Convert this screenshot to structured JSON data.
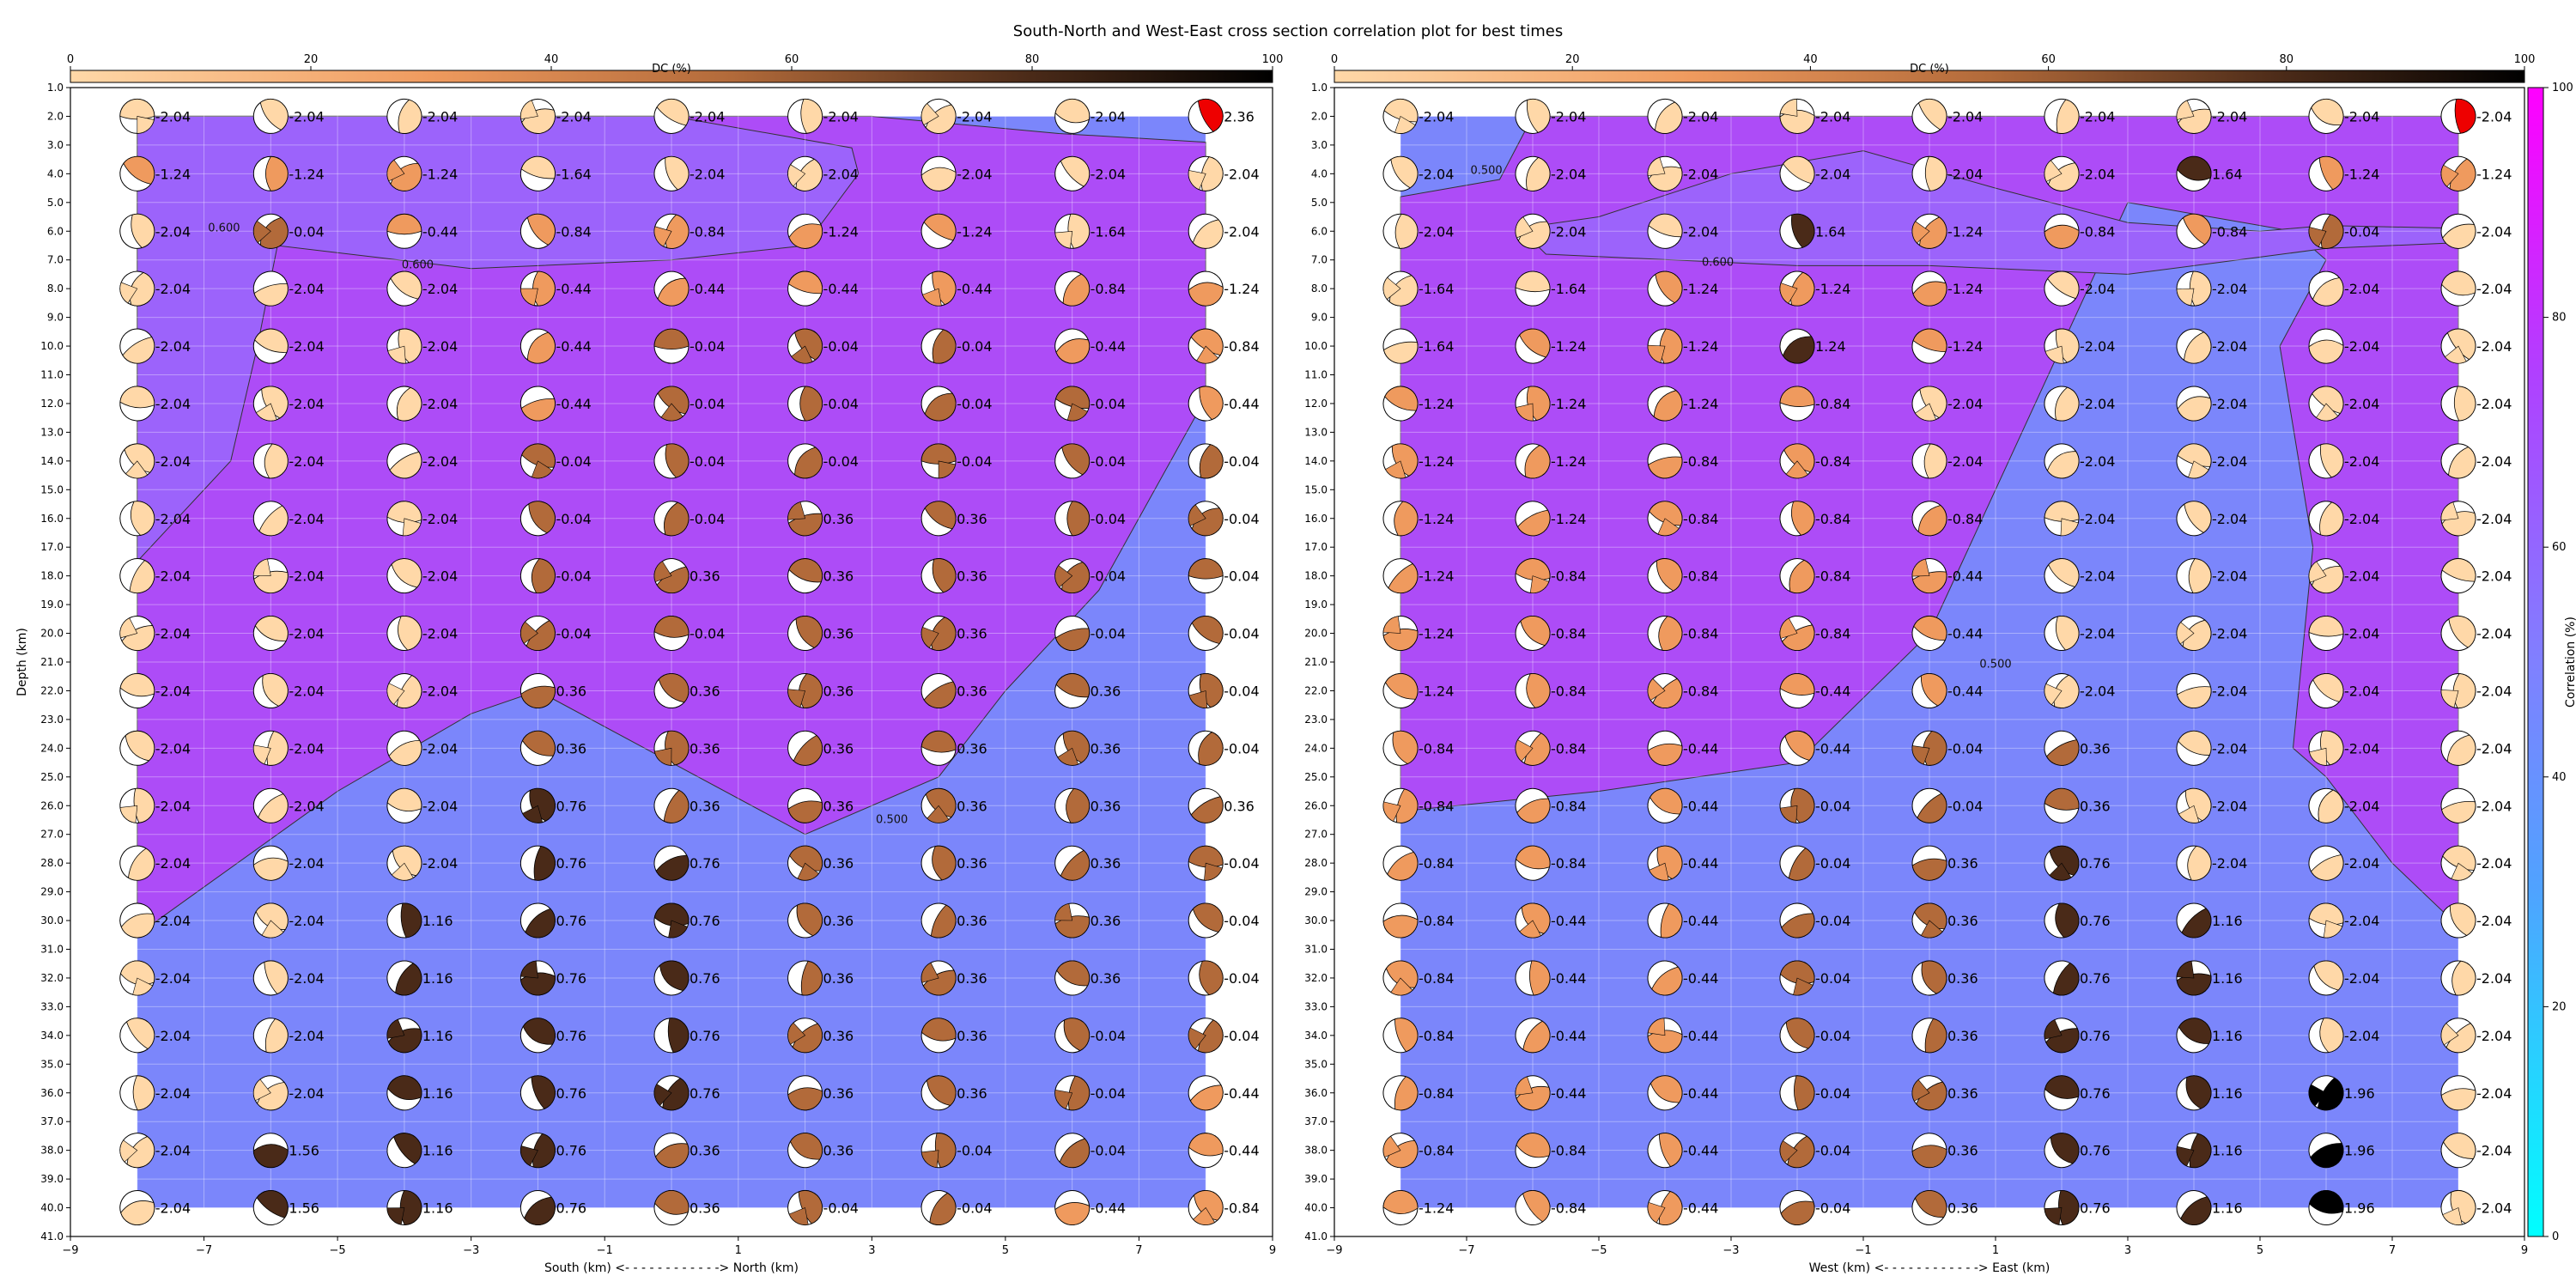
{
  "figure": {
    "title": "South-North and West-East cross section correlation plot for best times"
  },
  "dc_colorbar": {
    "label": "DC (%)",
    "ticks": [
      0,
      20,
      40,
      60,
      80,
      100
    ],
    "colors": [
      "#ffd8a8",
      "#ef9a5e",
      "#b26a3a",
      "#4a2a18",
      "#000000"
    ]
  },
  "correlation_colorbar": {
    "label": "Correlation (%)",
    "ticks": [
      0,
      20,
      40,
      60,
      80,
      100
    ],
    "colors": [
      "#00ffff",
      "#4fa3ff",
      "#8080ff",
      "#b040ff",
      "#ff00ff"
    ]
  },
  "depth_ticks": [
    "1.0",
    "2.0",
    "3.0",
    "4.0",
    "5.0",
    "6.0",
    "7.0",
    "8.0",
    "9.0",
    "10.0",
    "11.0",
    "12.0",
    "13.0",
    "14.0",
    "15.0",
    "16.0",
    "17.0",
    "18.0",
    "19.0",
    "20.0",
    "21.0",
    "22.0",
    "23.0",
    "24.0",
    "25.0",
    "26.0",
    "27.0",
    "28.0",
    "29.0",
    "30.0",
    "31.0",
    "32.0",
    "33.0",
    "34.0",
    "35.0",
    "36.0",
    "37.0",
    "38.0",
    "39.0",
    "40.0",
    "41.0"
  ],
  "chart_data": [
    {
      "type": "heatmap",
      "xlabel": "South (km) <- - - - - - - - - - - -> North (km)",
      "ylabel": "Depth (km)",
      "xlim": [
        -9,
        9
      ],
      "ylim": [
        41,
        1
      ],
      "x_ticks": [
        "−9",
        "−7",
        "−5",
        "−3",
        "−1",
        "1",
        "3",
        "5",
        "7",
        "9"
      ],
      "x": [
        -8,
        -6,
        -4,
        -2,
        0,
        2,
        4,
        6,
        8
      ],
      "depths": [
        2,
        4,
        6,
        8,
        10,
        12,
        14,
        16,
        18,
        20,
        22,
        24,
        26,
        28,
        30,
        32,
        34,
        36,
        38,
        40
      ],
      "contours": [
        {
          "label": "0.600",
          "points": [
            [
              -8,
              2
            ],
            [
              -8,
              17.5
            ],
            [
              -6.6,
              14
            ],
            [
              -6.2,
              10
            ],
            [
              -5.9,
              6.5
            ],
            [
              -3,
              7.3
            ],
            [
              0,
              7
            ],
            [
              2,
              6.5
            ],
            [
              2.8,
              4
            ],
            [
              2.7,
              3.1
            ],
            [
              0,
              2
            ]
          ]
        },
        {
          "label": "0.500",
          "points": [
            [
              -8,
              30.5
            ],
            [
              -5,
              25.5
            ],
            [
              -3,
              22.8
            ],
            [
              -2,
              22
            ],
            [
              0,
              24.5
            ],
            [
              2,
              27
            ],
            [
              4,
              25
            ],
            [
              5,
              22
            ],
            [
              6.4,
              18.5
            ],
            [
              8,
              11.8
            ],
            [
              8,
              2.9
            ],
            [
              5.8,
              2.6
            ],
            [
              3,
              2
            ],
            [
              -8,
              2
            ]
          ]
        }
      ],
      "contour_labels": [
        {
          "text": "0.600",
          "x": -6.7,
          "y": 6.0
        },
        {
          "text": "0.600",
          "x": -3.8,
          "y": 7.3
        },
        {
          "text": "0.500",
          "x": 3.3,
          "y": 26.6
        }
      ],
      "beachball_labels": [
        [
          "-2.04",
          "-2.04",
          "-2.04",
          "-2.04",
          "-2.04",
          "-2.04",
          "-2.04",
          "-2.04",
          "2.36"
        ],
        [
          "-1.24",
          "-1.24",
          "-1.24",
          "-1.64",
          "-2.04",
          "-2.04",
          "-2.04",
          "-2.04",
          "-2.04"
        ],
        [
          "-2.04",
          "-0.04",
          "-0.44",
          "-0.84",
          "-0.84",
          "-1.24",
          "-1.24",
          "-1.64",
          "-2.04"
        ],
        [
          "-2.04",
          "-2.04",
          "-2.04",
          "-0.44",
          "-0.44",
          "-0.44",
          "-0.44",
          "-0.84",
          "-1.24"
        ],
        [
          "-2.04",
          "-2.04",
          "-2.04",
          "-0.44",
          "-0.04",
          "-0.04",
          "-0.04",
          "-0.44",
          "-0.84"
        ],
        [
          "-2.04",
          "-2.04",
          "-2.04",
          "-0.44",
          "-0.04",
          "-0.04",
          "-0.04",
          "-0.04",
          "-0.44"
        ],
        [
          "-2.04",
          "-2.04",
          "-2.04",
          "-0.04",
          "-0.04",
          "-0.04",
          "-0.04",
          "-0.04",
          "-0.04"
        ],
        [
          "-2.04",
          "-2.04",
          "-2.04",
          "-0.04",
          "-0.04",
          "0.36",
          "0.36",
          "-0.04",
          "-0.04"
        ],
        [
          "-2.04",
          "-2.04",
          "-2.04",
          "-0.04",
          "0.36",
          "0.36",
          "0.36",
          "-0.04",
          "-0.04"
        ],
        [
          "-2.04",
          "-2.04",
          "-2.04",
          "-0.04",
          "-0.04",
          "0.36",
          "0.36",
          "-0.04",
          "-0.04"
        ],
        [
          "-2.04",
          "-2.04",
          "-2.04",
          "0.36",
          "0.36",
          "0.36",
          "0.36",
          "0.36",
          "-0.04"
        ],
        [
          "-2.04",
          "-2.04",
          "-2.04",
          "0.36",
          "0.36",
          "0.36",
          "0.36",
          "0.36",
          "-0.04"
        ],
        [
          "-2.04",
          "-2.04",
          "-2.04",
          "0.76",
          "0.36",
          "0.36",
          "0.36",
          "0.36",
          "0.36"
        ],
        [
          "-2.04",
          "-2.04",
          "-2.04",
          "0.76",
          "0.76",
          "0.36",
          "0.36",
          "0.36",
          "-0.04"
        ],
        [
          "-2.04",
          "-2.04",
          "1.16",
          "0.76",
          "0.76",
          "0.36",
          "0.36",
          "0.36",
          "-0.04"
        ],
        [
          "-2.04",
          "-2.04",
          "1.16",
          "0.76",
          "0.76",
          "0.36",
          "0.36",
          "0.36",
          "-0.04"
        ],
        [
          "-2.04",
          "-2.04",
          "1.16",
          "0.76",
          "0.76",
          "0.36",
          "0.36",
          "-0.04",
          "-0.04"
        ],
        [
          "-2.04",
          "-2.04",
          "1.16",
          "0.76",
          "0.76",
          "0.36",
          "0.36",
          "-0.04",
          "-0.44"
        ],
        [
          "-2.04",
          "1.56",
          "1.16",
          "0.76",
          "0.36",
          "0.36",
          "-0.04",
          "-0.04",
          "-0.44"
        ],
        [
          "-2.04",
          "1.56",
          "1.16",
          "0.76",
          "0.36",
          "-0.04",
          "-0.04",
          "-0.44",
          "-0.84"
        ]
      ]
    },
    {
      "type": "heatmap",
      "xlabel": "West (km) <- - - - - - - - - - - -> East (km)",
      "ylabel": "",
      "xlim": [
        -9,
        9
      ],
      "ylim": [
        41,
        1
      ],
      "x_ticks": [
        "−9",
        "−7",
        "−5",
        "−3",
        "−1",
        "1",
        "3",
        "5",
        "7",
        "9"
      ],
      "x": [
        -8,
        -6,
        -4,
        -2,
        0,
        2,
        4,
        6,
        8
      ],
      "depths": [
        2,
        4,
        6,
        8,
        10,
        12,
        14,
        16,
        18,
        20,
        22,
        24,
        26,
        28,
        30,
        32,
        34,
        36,
        38,
        40
      ],
      "contours": [
        {
          "label": "0.600",
          "points": [
            [
              -6.2,
              5.9
            ],
            [
              -5.8,
              6.8
            ],
            [
              -2,
              7.2
            ],
            [
              0,
              7.2
            ],
            [
              3,
              7.5
            ],
            [
              5,
              6.9
            ],
            [
              6,
              6.6
            ],
            [
              8,
              6.4
            ],
            [
              8,
              5.9
            ],
            [
              6,
              5.8
            ],
            [
              5,
              6
            ],
            [
              3,
              5.7
            ],
            [
              1,
              4.5
            ],
            [
              -1,
              3.2
            ],
            [
              -3,
              4
            ],
            [
              -5,
              5.5
            ]
          ]
        },
        {
          "label": "0.500",
          "points": [
            [
              -8,
              4.8
            ],
            [
              -6.5,
              4.2
            ],
            [
              -6,
              2
            ],
            [
              8,
              2
            ],
            [
              8,
              30.2
            ],
            [
              7,
              28
            ],
            [
              6,
              25
            ],
            [
              5.5,
              24
            ],
            [
              5.8,
              17
            ],
            [
              5.3,
              10
            ],
            [
              6,
              7
            ],
            [
              5.5,
              6
            ],
            [
              3,
              5
            ],
            [
              0,
              20
            ],
            [
              -2,
              24.5
            ],
            [
              -5,
              25.5
            ],
            [
              -8,
              26.2
            ]
          ]
        }
      ],
      "contour_labels": [
        {
          "text": "0.500",
          "x": -6.7,
          "y": 4.0
        },
        {
          "text": "0.600",
          "x": -3.2,
          "y": 7.2
        },
        {
          "text": "0.500",
          "x": 1.0,
          "y": 21.2
        }
      ],
      "beachball_labels": [
        [
          "-2.04",
          "-2.04",
          "-2.04",
          "-2.04",
          "-2.04",
          "-2.04",
          "-2.04",
          "-2.04",
          "-2.04"
        ],
        [
          "-2.04",
          "-2.04",
          "-2.04",
          "-2.04",
          "-2.04",
          "-2.04",
          "1.64",
          "-1.24",
          "-1.24"
        ],
        [
          "-2.04",
          "-2.04",
          "-2.04",
          "1.64",
          "-1.24",
          "-0.84",
          "-0.84",
          "-0.04",
          "-2.04"
        ],
        [
          "-1.64",
          "-1.64",
          "-1.24",
          "-1.24",
          "-1.24",
          "-2.04",
          "-2.04",
          "-2.04",
          "-2.04"
        ],
        [
          "-1.64",
          "-1.24",
          "-1.24",
          "1.24",
          "-1.24",
          "-2.04",
          "-2.04",
          "-2.04",
          "-2.04"
        ],
        [
          "-1.24",
          "-1.24",
          "-1.24",
          "-0.84",
          "-2.04",
          "-2.04",
          "-2.04",
          "-2.04",
          "-2.04"
        ],
        [
          "-1.24",
          "-1.24",
          "-0.84",
          "-0.84",
          "-2.04",
          "-2.04",
          "-2.04",
          "-2.04",
          "-2.04"
        ],
        [
          "-1.24",
          "-1.24",
          "-0.84",
          "-0.84",
          "-0.84",
          "-2.04",
          "-2.04",
          "-2.04",
          "-2.04"
        ],
        [
          "-1.24",
          "-0.84",
          "-0.84",
          "-0.84",
          "-0.44",
          "-2.04",
          "-2.04",
          "-2.04",
          "-2.04"
        ],
        [
          "-1.24",
          "-0.84",
          "-0.84",
          "-0.84",
          "-0.44",
          "-2.04",
          "-2.04",
          "-2.04",
          "-2.04"
        ],
        [
          "-1.24",
          "-0.84",
          "-0.84",
          "-0.44",
          "-0.44",
          "-2.04",
          "-2.04",
          "-2.04",
          "-2.04"
        ],
        [
          "-0.84",
          "-0.84",
          "-0.44",
          "-0.44",
          "-0.04",
          "0.36",
          "-2.04",
          "-2.04",
          "-2.04"
        ],
        [
          "-0.84",
          "-0.84",
          "-0.44",
          "-0.04",
          "-0.04",
          "0.36",
          "-2.04",
          "-2.04",
          "-2.04"
        ],
        [
          "-0.84",
          "-0.84",
          "-0.44",
          "-0.04",
          "0.36",
          "0.76",
          "-2.04",
          "-2.04",
          "-2.04"
        ],
        [
          "-0.84",
          "-0.44",
          "-0.44",
          "-0.04",
          "0.36",
          "0.76",
          "1.16",
          "-2.04",
          "-2.04"
        ],
        [
          "-0.84",
          "-0.44",
          "-0.44",
          "-0.04",
          "0.36",
          "0.76",
          "1.16",
          "-2.04",
          "-2.04"
        ],
        [
          "-0.84",
          "-0.44",
          "-0.44",
          "-0.04",
          "0.36",
          "0.76",
          "1.16",
          "-2.04",
          "-2.04"
        ],
        [
          "-0.84",
          "-0.44",
          "-0.44",
          "-0.04",
          "0.36",
          "0.76",
          "1.16",
          "1.96",
          "-2.04"
        ],
        [
          "-0.84",
          "-0.84",
          "-0.44",
          "-0.04",
          "0.36",
          "0.76",
          "1.16",
          "1.96",
          "-2.04"
        ],
        [
          "-1.24",
          "-0.84",
          "-0.44",
          "-0.04",
          "0.36",
          "0.76",
          "1.16",
          "1.96",
          "-2.04"
        ]
      ]
    }
  ]
}
